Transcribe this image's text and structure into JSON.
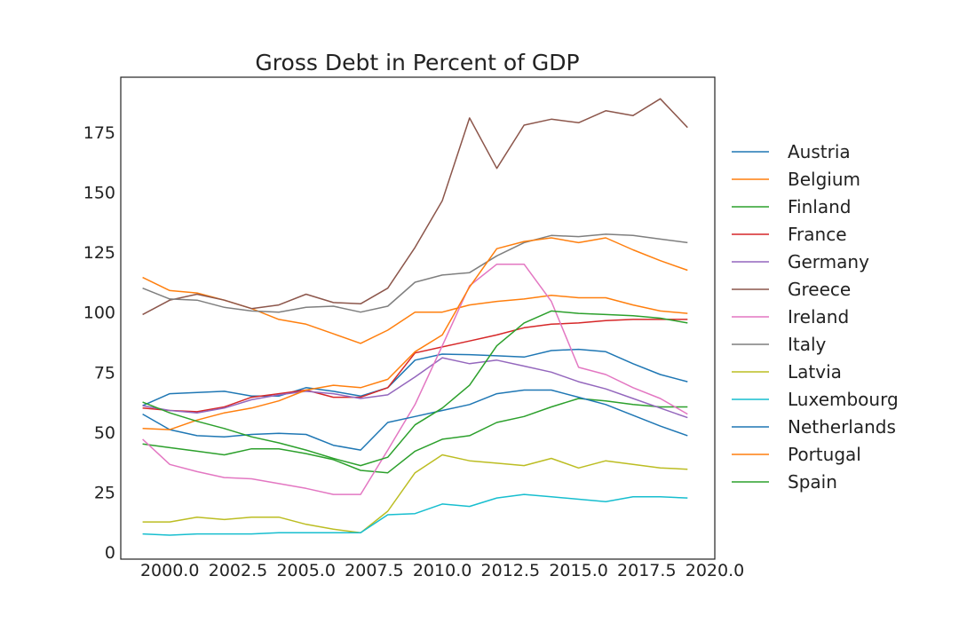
{
  "chart_data": {
    "type": "line",
    "title": "Gross Debt in Percent of GDP",
    "xlabel": "",
    "ylabel": "",
    "xlim": [
      1998.2,
      2020.0
    ],
    "ylim": [
      -3,
      198
    ],
    "x_ticks": [
      2000.0,
      2002.5,
      2005.0,
      2007.5,
      2010.0,
      2012.5,
      2015.0,
      2017.5,
      2020.0
    ],
    "x_tick_labels": [
      "2000.0",
      "2002.5",
      "2005.0",
      "2007.5",
      "2010.0",
      "2012.5",
      "2015.0",
      "2017.5",
      "2020.0"
    ],
    "y_ticks": [
      0,
      25,
      50,
      75,
      100,
      125,
      150,
      175
    ],
    "y_tick_labels": [
      "0",
      "25",
      "50",
      "75",
      "100",
      "125",
      "150",
      "175"
    ],
    "grid": false,
    "legend_position": "right",
    "x": [
      1999,
      2000,
      2001,
      2002,
      2003,
      2004,
      2005,
      2006,
      2007,
      2008,
      2009,
      2010,
      2011,
      2012,
      2013,
      2014,
      2015,
      2016,
      2017,
      2018,
      2019
    ],
    "series": [
      {
        "name": "Austria",
        "color": "#1f77b4",
        "values": [
          61,
          66,
          66.5,
          67,
          65,
          65,
          68.5,
          67,
          65,
          68.5,
          80,
          82.5,
          82.3,
          81.8,
          81.3,
          84,
          84.5,
          83.5,
          78.5,
          74,
          71
        ]
      },
      {
        "name": "Belgium",
        "color": "#ff7f0e",
        "values": [
          114.5,
          109,
          108,
          105,
          101.5,
          97,
          95,
          91,
          87,
          92.5,
          100,
          100,
          103,
          104.5,
          105.5,
          107,
          106,
          106,
          103,
          100.5,
          99.5
        ]
      },
      {
        "name": "Finland",
        "color": "#2ca02c",
        "values": [
          45,
          43.5,
          42,
          40.5,
          43,
          43,
          41,
          38.5,
          34,
          33,
          42,
          47,
          48.5,
          54,
          56.5,
          60.5,
          64,
          63,
          61.5,
          60.5,
          60.5
        ]
      },
      {
        "name": "France",
        "color": "#d62728",
        "values": [
          60,
          59,
          58.5,
          60.5,
          64.5,
          66,
          67.5,
          64.5,
          64.5,
          68.5,
          83,
          85.5,
          88,
          90.5,
          93.5,
          95,
          95.5,
          96.5,
          97,
          97,
          97
        ]
      },
      {
        "name": "Germany",
        "color": "#9467bd",
        "values": [
          61,
          59,
          58,
          60,
          63.5,
          65.5,
          67,
          66,
          64,
          65.5,
          73,
          81,
          78.5,
          80,
          77.5,
          75,
          71,
          68,
          64,
          60,
          56
        ]
      },
      {
        "name": "Greece",
        "color": "#8c564b",
        "values": [
          99,
          105,
          107.5,
          105,
          101.5,
          103,
          107.5,
          104,
          103.5,
          110,
          127,
          146.5,
          181,
          160,
          178,
          180.5,
          179,
          184,
          182,
          189,
          177
        ]
      },
      {
        "name": "Ireland",
        "color": "#e377c2",
        "values": [
          47,
          36.5,
          33.5,
          31,
          30.5,
          28.5,
          26.5,
          24,
          24,
          42.5,
          61.5,
          86,
          111,
          120,
          120,
          104.5,
          77,
          74,
          68.5,
          64,
          57.5
        ]
      },
      {
        "name": "Italy",
        "color": "#7f7f7f",
        "values": [
          110,
          105.5,
          105,
          102,
          100.5,
          100,
          102,
          102.5,
          100,
          102.5,
          112.5,
          115.5,
          116.5,
          123.5,
          129,
          132,
          131.5,
          132.5,
          132,
          130.5,
          129
        ]
      },
      {
        "name": "Latvia",
        "color": "#bcbd22",
        "values": [
          12.5,
          12.5,
          14.5,
          13.5,
          14.5,
          14.5,
          11.5,
          9.5,
          8,
          17,
          33,
          40.5,
          38,
          37,
          36,
          39,
          35,
          38,
          36.5,
          35,
          34.5
        ]
      },
      {
        "name": "Luxembourg",
        "color": "#17becf",
        "values": [
          7.5,
          7,
          7.5,
          7.5,
          7.5,
          8,
          8,
          8,
          8,
          15.5,
          16,
          20,
          19,
          22.5,
          24,
          23,
          22,
          21,
          23,
          23,
          22.5
        ]
      },
      {
        "name": "Netherlands",
        "color": "#1f77b4",
        "values": [
          57.5,
          51,
          48.5,
          48,
          49,
          49.5,
          49,
          44.5,
          42.5,
          54,
          56.5,
          59,
          61.5,
          66,
          67.5,
          67.5,
          64.5,
          61.5,
          57,
          52.5,
          48.5
        ]
      },
      {
        "name": "Portugal",
        "color": "#ff7f0e",
        "values": [
          51.5,
          51,
          55,
          58,
          60,
          63,
          67.5,
          69.5,
          68.5,
          72,
          83.5,
          90.5,
          110.5,
          126.5,
          129.5,
          131,
          129,
          131,
          126,
          121.5,
          117.5
        ]
      },
      {
        "name": "Spain",
        "color": "#2ca02c",
        "values": [
          62.5,
          58,
          54.5,
          51.5,
          48,
          45.5,
          42.5,
          39,
          36,
          39.5,
          53,
          60,
          69.5,
          86,
          95.5,
          100.5,
          99.5,
          99,
          98.5,
          97.5,
          95.5
        ]
      }
    ]
  }
}
